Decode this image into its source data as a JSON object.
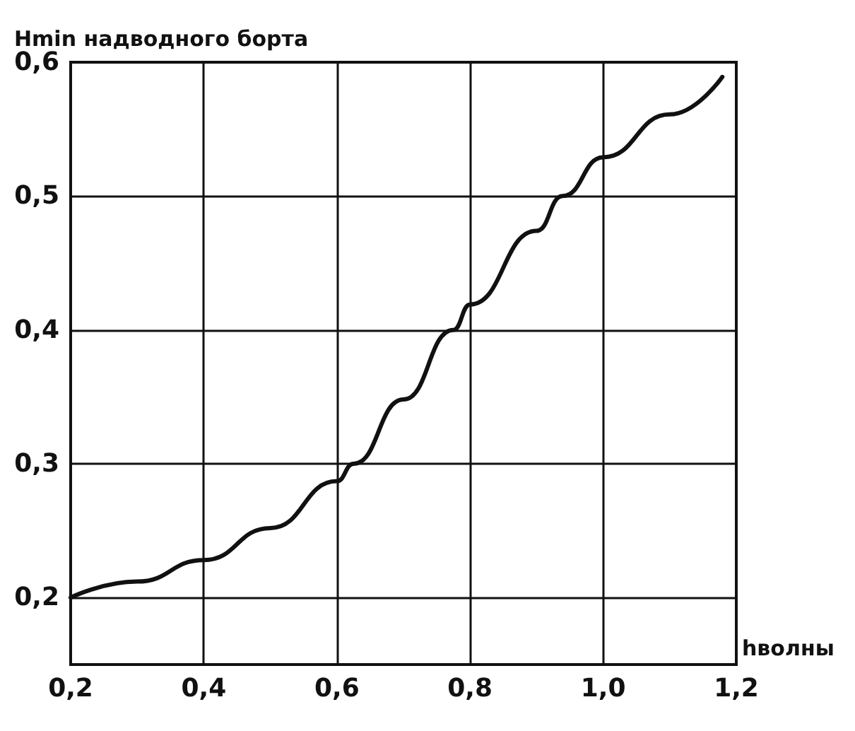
{
  "chart_data": {
    "type": "line",
    "xlabel": "hволны",
    "ylabel": "Hmin надводного борта",
    "x": [
      0.2,
      0.3,
      0.4,
      0.5,
      0.6,
      0.625,
      0.7,
      0.775,
      0.8,
      0.9,
      0.939,
      1.0,
      1.1,
      1.179
    ],
    "series": [
      {
        "color": "#111111",
        "values": [
          0.2,
          0.212,
          0.228,
          0.252,
          0.287,
          0.3,
          0.348,
          0.4,
          0.419,
          0.474,
          0.5,
          0.529,
          0.561,
          0.589
        ]
      }
    ],
    "xlim": [
      0.2,
      1.2
    ],
    "ylim": [
      0.15,
      0.6
    ],
    "xticks": [
      {
        "value": 0.2,
        "label": "0,2"
      },
      {
        "value": 0.4,
        "label": "0,4"
      },
      {
        "value": 0.6,
        "label": "0,6"
      },
      {
        "value": 0.8,
        "label": "0,8"
      },
      {
        "value": 1.0,
        "label": "1,0"
      },
      {
        "value": 1.2,
        "label": "1,2"
      }
    ],
    "yticks": [
      {
        "value": 0.2,
        "label": "0,2"
      },
      {
        "value": 0.3,
        "label": "0,3"
      },
      {
        "value": 0.4,
        "label": "0,4"
      },
      {
        "value": 0.5,
        "label": "0,5"
      },
      {
        "value": 0.6,
        "label": "0,6"
      }
    ],
    "grid": true,
    "marker": "none",
    "line_style": "solid"
  }
}
